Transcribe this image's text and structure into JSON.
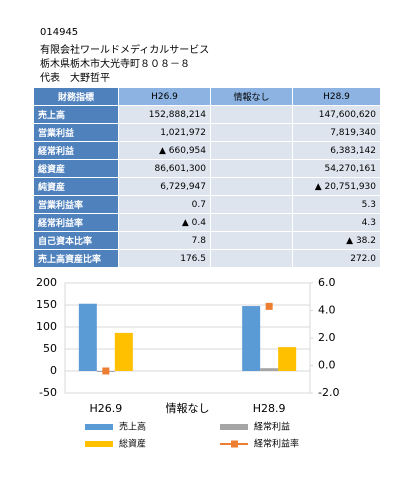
{
  "header": {
    "code": "014945",
    "company": "有限会社ワールドメディカルサービス",
    "address": "栃木県栃木市大光寺町８０８－８",
    "representative": "代表　大野哲平"
  },
  "table": {
    "columns": [
      "財務指標",
      "H26.9",
      "情報なし",
      "H28.9"
    ],
    "rows": [
      [
        "売上高",
        "152,888,214",
        "",
        "147,600,620"
      ],
      [
        "営業利益",
        "1,021,972",
        "",
        "7,819,340"
      ],
      [
        "経常利益",
        "▲ 660,954",
        "",
        "6,383,142"
      ],
      [
        "総資産",
        "86,601,300",
        "",
        "54,270,161"
      ],
      [
        "純資産",
        "6,729,947",
        "",
        "▲ 20,751,930"
      ],
      [
        "営業利益率",
        "0.7",
        "",
        "5.3"
      ],
      [
        "経常利益率",
        "▲ 0.4",
        "",
        "4.3"
      ],
      [
        "自己資本比率",
        "7.8",
        "",
        "▲ 38.2"
      ],
      [
        "売上高資産比率",
        "176.5",
        "",
        "272.0"
      ]
    ]
  },
  "chart_data": {
    "type": "bar",
    "categories": [
      "H26.9",
      "情報なし",
      "H28.9"
    ],
    "ylim": [
      -50,
      200
    ],
    "yticks": [
      -50,
      0,
      50,
      100,
      150,
      200
    ],
    "y2lim": [
      -2,
      6
    ],
    "y2ticks": [
      {
        "value": -2,
        "label": "-2.0"
      },
      {
        "value": 0,
        "label": "0.0"
      },
      {
        "value": 2,
        "label": "2.0"
      },
      {
        "value": 4,
        "label": "4.0"
      },
      {
        "value": 6,
        "label": "6.0"
      }
    ],
    "grid": true,
    "series": [
      {
        "name": "売上高",
        "type": "bar",
        "color": "#5b9bd5",
        "values": [
          152.9,
          null,
          147.6
        ]
      },
      {
        "name": "経常利益",
        "type": "bar",
        "color": "#a5a5a5",
        "values": [
          -0.7,
          null,
          6.4
        ]
      },
      {
        "name": "総資産",
        "type": "bar",
        "color": "#ffc000",
        "values": [
          86.6,
          null,
          54.3
        ]
      },
      {
        "name": "経常利益率",
        "type": "line",
        "axis": "y2",
        "color": "#ed7d31",
        "values": [
          -0.4,
          null,
          4.3
        ]
      }
    ]
  }
}
